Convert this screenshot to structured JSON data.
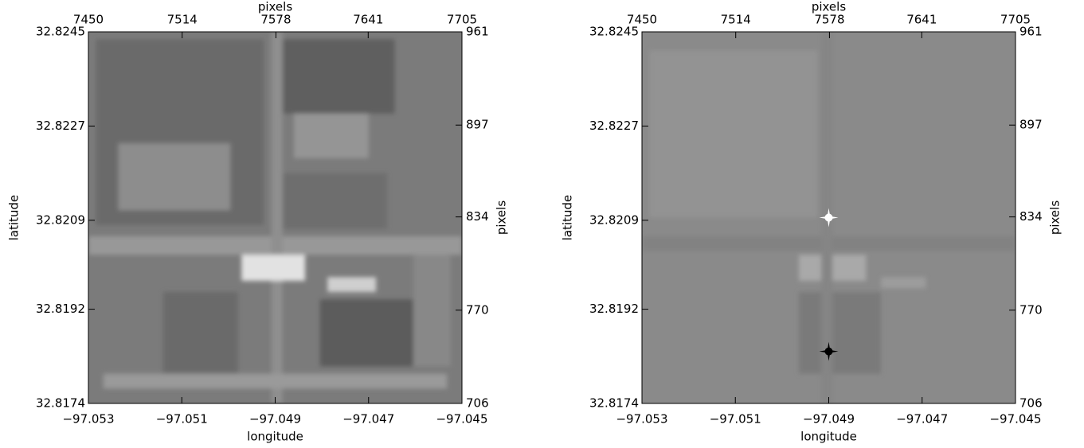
{
  "chart_data": [
    {
      "type": "image",
      "xlabel": "longitude",
      "ylabel": "latitude",
      "x2label": "pixels",
      "y2label": "pixels",
      "xlim": [
        -97.053,
        -97.045
      ],
      "xticks": [
        {
          "value": -97.053,
          "label": "−97.053"
        },
        {
          "value": -97.051,
          "label": "−97.051"
        },
        {
          "value": -97.049,
          "label": "−97.049"
        },
        {
          "value": -97.047,
          "label": "−97.047"
        },
        {
          "value": -97.045,
          "label": "−97.045"
        }
      ],
      "ylim": [
        32.8174,
        32.8245
      ],
      "yticks": [
        32.8174,
        32.8192,
        32.8209,
        32.8227,
        32.8245
      ],
      "x2lim": [
        7450,
        7705
      ],
      "x2ticks": [
        7450,
        7514,
        7578,
        7641,
        7705
      ],
      "y2lim": [
        706,
        961
      ],
      "y2ticks": [
        706,
        770,
        834,
        897,
        961
      ]
    },
    {
      "type": "image",
      "xlabel": "longitude",
      "ylabel": "latitude",
      "x2label": "pixels",
      "y2label": "pixels",
      "xlim": [
        -97.053,
        -97.045
      ],
      "xticks": [
        {
          "value": -97.053,
          "label": "−97.053"
        },
        {
          "value": -97.051,
          "label": "−97.051"
        },
        {
          "value": -97.049,
          "label": "−97.049"
        },
        {
          "value": -97.047,
          "label": "−97.047"
        },
        {
          "value": -97.045,
          "label": "−97.045"
        }
      ],
      "ylim": [
        32.8174,
        32.8245
      ],
      "yticks": [
        32.8174,
        32.8192,
        32.8209,
        32.8227,
        32.8245
      ],
      "x2lim": [
        7450,
        7705
      ],
      "x2ticks": [
        7450,
        7514,
        7578,
        7641,
        7705
      ],
      "y2lim": [
        706,
        961
      ],
      "y2ticks": [
        706,
        770,
        834,
        897,
        961
      ]
    }
  ]
}
